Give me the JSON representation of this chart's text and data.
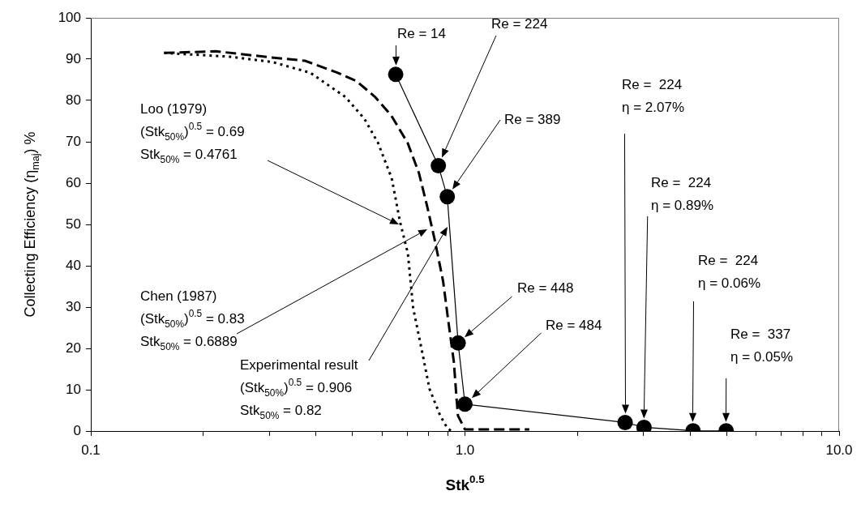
{
  "chart_data": {
    "type": "line",
    "xlabel": "Stk$^{0.5}$",
    "ylabel": "Collecting Efficiency (η$_{maj}$) %",
    "log": "x",
    "xlim": [
      0.1,
      10
    ],
    "ylim": [
      0,
      100
    ],
    "xticks": [
      {
        "value": 0.1,
        "label": "0.1"
      },
      {
        "value": 0.2,
        "label": null
      },
      {
        "value": 0.3,
        "label": null
      },
      {
        "value": 0.4,
        "label": null
      },
      {
        "value": 0.5,
        "label": null
      },
      {
        "value": 0.6,
        "label": null
      },
      {
        "value": 0.7,
        "label": null
      },
      {
        "value": 0.8,
        "label": null
      },
      {
        "value": 0.9,
        "label": null
      },
      {
        "value": 1,
        "label": "1.0"
      },
      {
        "value": 2,
        "label": null
      },
      {
        "value": 3,
        "label": null
      },
      {
        "value": 4,
        "label": null
      },
      {
        "value": 5,
        "label": null
      },
      {
        "value": 6,
        "label": null
      },
      {
        "value": 7,
        "label": null
      },
      {
        "value": 8,
        "label": null
      },
      {
        "value": 9,
        "label": null
      },
      {
        "value": 10,
        "label": "10.0"
      }
    ],
    "yticks": [
      0,
      10,
      20,
      30,
      40,
      50,
      60,
      70,
      80,
      90,
      100
    ],
    "grid": false,
    "legend": false,
    "series": [
      {
        "color": "#000000",
        "marker": "circle",
        "line_style": "solid",
        "x": [
          0.653,
          0.849,
          0.897,
          0.959,
          1.0,
          2.68,
          3.01,
          4.07,
          4.99
        ],
        "values": [
          86.3,
          64.2,
          56.7,
          21.3,
          6.5,
          2.07,
          0.89,
          0.06,
          0.05
        ]
      },
      {
        "color": "#000000",
        "marker": "none",
        "line_style": "dotted",
        "x": [
          0.157,
          0.235,
          0.306,
          0.386,
          0.48,
          0.539,
          0.586,
          0.637,
          0.67,
          0.704,
          0.727,
          0.765,
          0.804,
          0.859,
          0.896,
          0.918
        ],
        "values": [
          91.5,
          90.6,
          89.3,
          86.7,
          80.8,
          75.5,
          69.7,
          61.2,
          50.8,
          42.9,
          29.8,
          20,
          10.2,
          3.7,
          0.8,
          0
        ]
      },
      {
        "color": "#000000",
        "marker": "none",
        "line_style": "dashed",
        "x": [
          0.157,
          0.216,
          0.312,
          0.374,
          0.457,
          0.513,
          0.576,
          0.636,
          0.703,
          0.753,
          0.791,
          0.831,
          0.874,
          0.903,
          0.934,
          0.949,
          0.958,
          1.0,
          1.486
        ],
        "values": [
          91.5,
          91.9,
          90.3,
          89.6,
          86.7,
          84.7,
          80.8,
          76.3,
          69.7,
          62.5,
          54.7,
          46.1,
          36.3,
          26.5,
          16.7,
          8.2,
          3.7,
          0.4,
          0.4
        ]
      }
    ],
    "annotations": [
      "Re = 14",
      "Re = 224",
      "Re = 389",
      "Re = 448",
      "Re = 484",
      "Re =  224\nη = 2.07%",
      "Re =  224\nη = 0.89%",
      "Re =  224\nη = 0.06%",
      "Re =  337\nη = 0.05%",
      "Loo (1979)\n(Stk$_{50%}$)$^{0.5}$ = 0.69\nStk$_{50%}$ = 0.4761",
      "Chen (1987)\n(Stk$_{50%}$)$^{0.5}$ = 0.83\nStk$_{50%}$ = 0.6889",
      "Experimental result\n(Stk$_{50%}$)$^{0.5}$ = 0.906\nStk$_{50%}$ = 0.82"
    ]
  }
}
